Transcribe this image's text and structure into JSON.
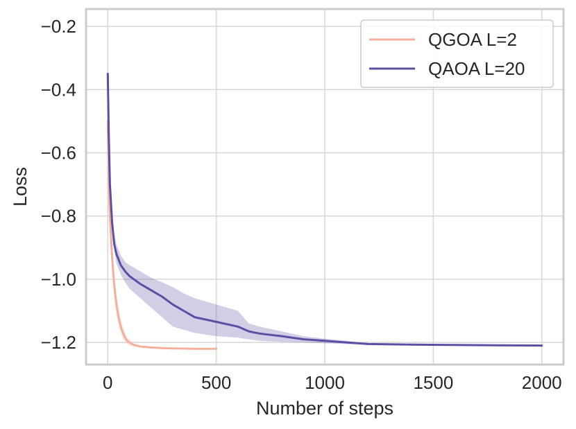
{
  "chart_data": {
    "type": "line",
    "title": "",
    "xlabel": "Number of steps",
    "ylabel": "Loss",
    "xlim": [
      -100,
      2100
    ],
    "ylim": [
      -1.27,
      -0.145
    ],
    "xticks": [
      0,
      500,
      1000,
      1500,
      2000
    ],
    "xtick_labels": [
      "0",
      "500",
      "1000",
      "1500",
      "2000"
    ],
    "yticks": [
      -1.2,
      -1.0,
      -0.8,
      -0.6,
      -0.4,
      -0.2
    ],
    "ytick_labels": [
      "−1.2",
      "−1.0",
      "−0.8",
      "−0.6",
      "−0.4",
      "−0.2"
    ],
    "grid": true,
    "legend_position": "top-right",
    "series": [
      {
        "name": "QGOA L=2",
        "color": "#f4b09c",
        "x": [
          0,
          5,
          10,
          20,
          30,
          40,
          50,
          60,
          70,
          80,
          90,
          100,
          120,
          150,
          200,
          250,
          300,
          400,
          500
        ],
        "y": [
          -0.5,
          -0.7,
          -0.8,
          -0.93,
          -1.02,
          -1.08,
          -1.12,
          -1.15,
          -1.17,
          -1.185,
          -1.195,
          -1.2,
          -1.208,
          -1.213,
          -1.216,
          -1.218,
          -1.219,
          -1.22,
          -1.22
        ],
        "lower": [
          -0.55,
          -0.76,
          -0.86,
          -0.98,
          -1.06,
          -1.11,
          -1.15,
          -1.17,
          -1.19,
          -1.2,
          -1.205,
          -1.21,
          -1.213,
          -1.216,
          -1.218,
          -1.219,
          -1.22,
          -1.221,
          -1.221
        ],
        "upper": [
          -0.45,
          -0.64,
          -0.74,
          -0.88,
          -0.98,
          -1.05,
          -1.09,
          -1.13,
          -1.15,
          -1.17,
          -1.185,
          -1.19,
          -1.203,
          -1.21,
          -1.214,
          -1.217,
          -1.218,
          -1.219,
          -1.219
        ]
      },
      {
        "name": "QAOA L=20",
        "color": "#5a4fa2",
        "x": [
          0,
          5,
          10,
          20,
          30,
          40,
          60,
          80,
          100,
          150,
          200,
          250,
          300,
          350,
          400,
          500,
          600,
          650,
          700,
          800,
          900,
          1000,
          1100,
          1200,
          1400,
          1600,
          1800,
          2000
        ],
        "y": [
          -0.35,
          -0.55,
          -0.7,
          -0.82,
          -0.89,
          -0.92,
          -0.955,
          -0.975,
          -0.99,
          -1.015,
          -1.035,
          -1.055,
          -1.08,
          -1.1,
          -1.12,
          -1.135,
          -1.15,
          -1.165,
          -1.172,
          -1.18,
          -1.19,
          -1.195,
          -1.2,
          -1.205,
          -1.207,
          -1.208,
          -1.209,
          -1.21
        ],
        "lower": [
          -0.35,
          -0.57,
          -0.72,
          -0.84,
          -0.91,
          -0.95,
          -0.985,
          -1.01,
          -1.03,
          -1.06,
          -1.09,
          -1.12,
          -1.15,
          -1.16,
          -1.17,
          -1.18,
          -1.185,
          -1.19,
          -1.195,
          -1.198,
          -1.2,
          -1.203,
          -1.205,
          -1.207,
          -1.208,
          -1.209,
          -1.21,
          -1.211
        ],
        "upper": [
          -0.35,
          -0.53,
          -0.68,
          -0.8,
          -0.86,
          -0.89,
          -0.925,
          -0.945,
          -0.955,
          -0.975,
          -0.995,
          -1.01,
          -1.025,
          -1.045,
          -1.06,
          -1.08,
          -1.1,
          -1.14,
          -1.15,
          -1.165,
          -1.18,
          -1.188,
          -1.195,
          -1.203,
          -1.206,
          -1.207,
          -1.208,
          -1.209
        ]
      }
    ]
  }
}
